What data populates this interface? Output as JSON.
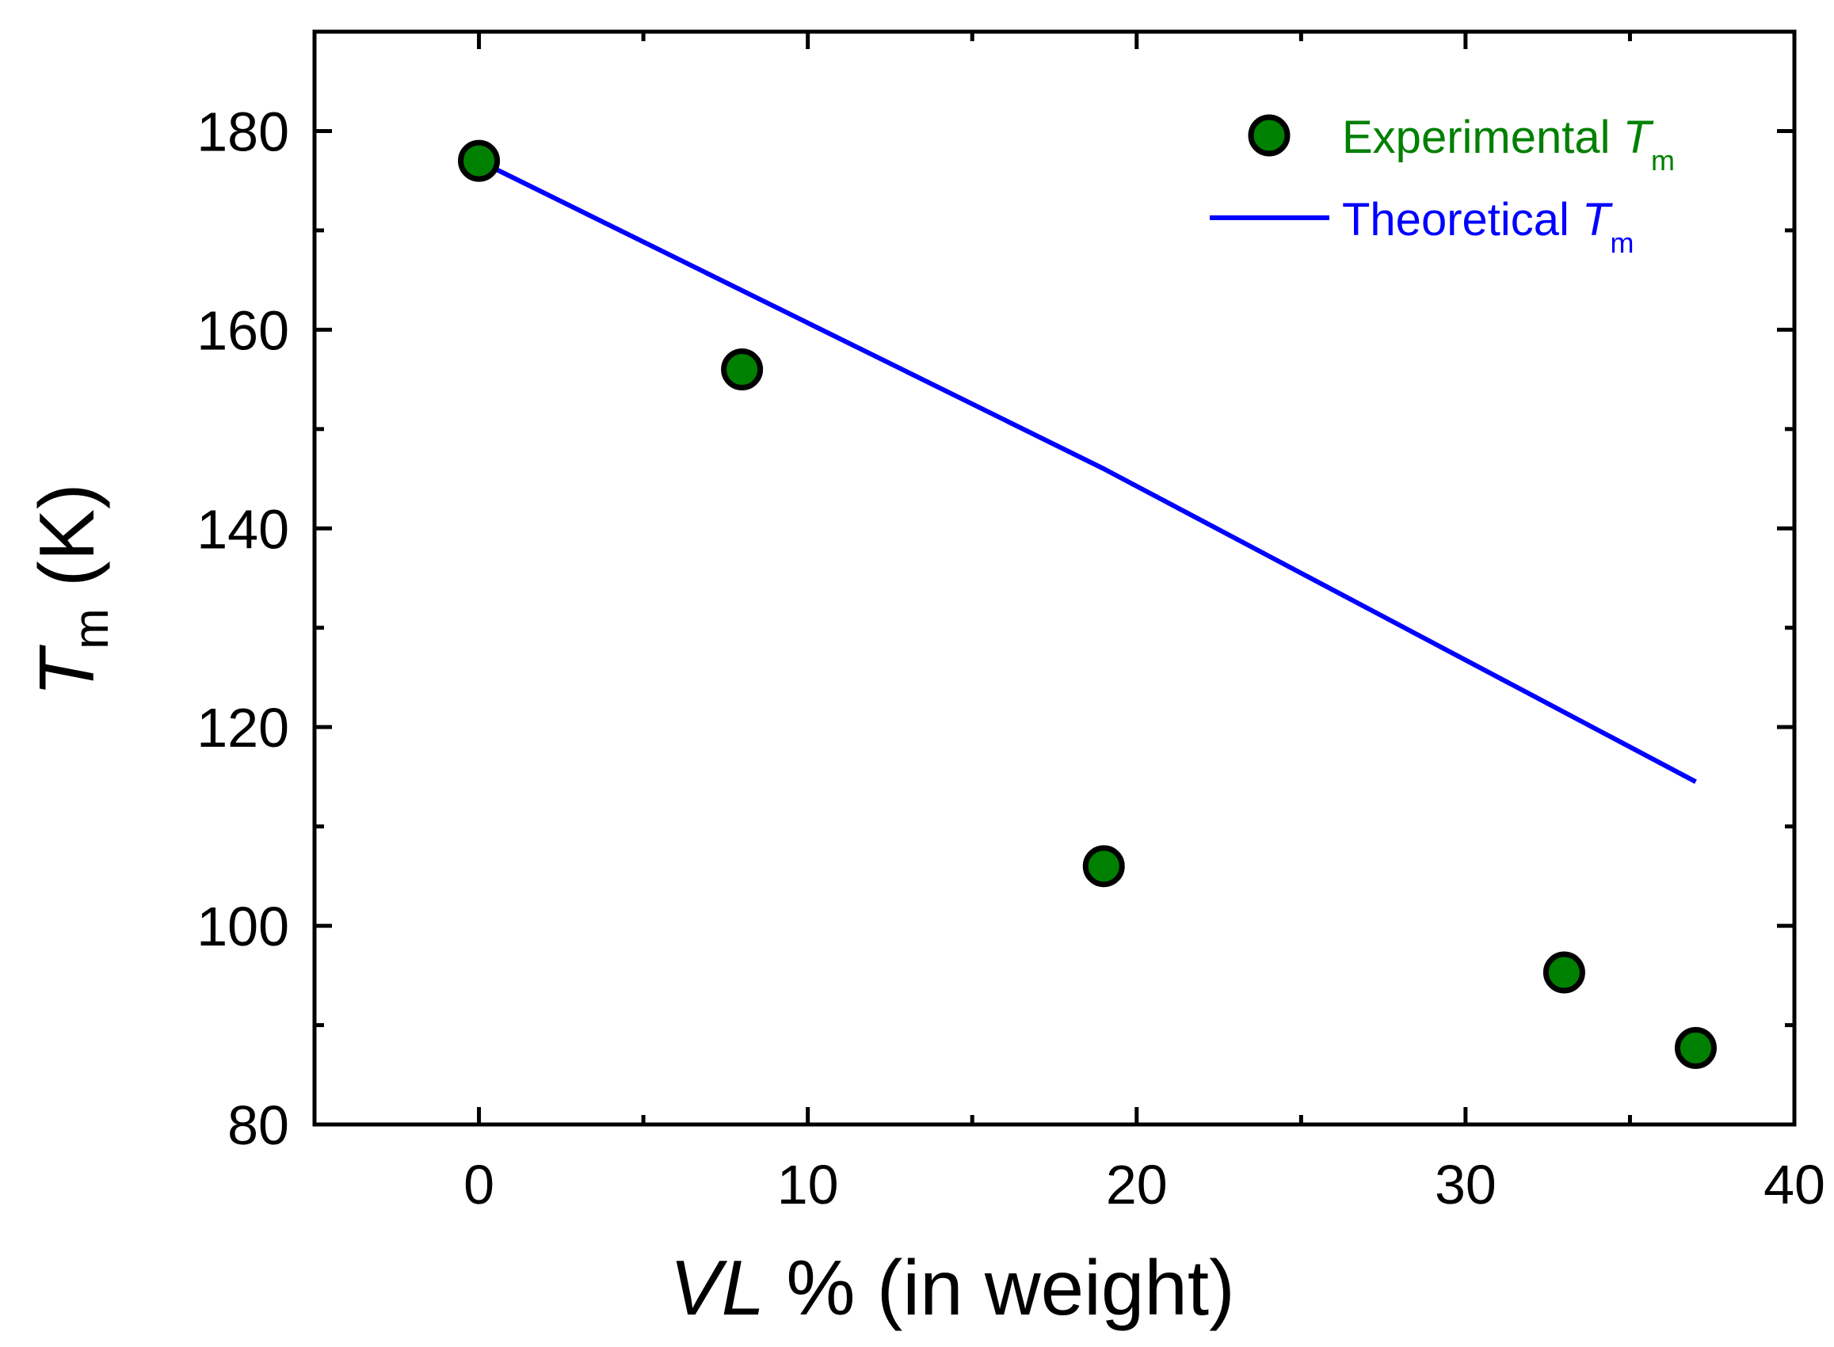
{
  "chart_data": {
    "type": "scatter",
    "title": "",
    "xlabel": {
      "italic": "VL",
      "rest": " % (in weight)"
    },
    "ylabel": {
      "symbol": "T",
      "subscript": "m",
      "unit": " (K)"
    },
    "xlim": [
      -5,
      40
    ],
    "ylim": [
      80,
      190
    ],
    "x_ticks": [
      0,
      10,
      20,
      30,
      40
    ],
    "y_ticks": [
      80,
      100,
      120,
      140,
      160,
      180
    ],
    "x_tick_labels": [
      "0",
      "10",
      "20",
      "30",
      "40"
    ],
    "y_tick_labels": [
      "80",
      "100",
      "120",
      "140",
      "160",
      "180"
    ],
    "grid": false,
    "legend_position": "top-right",
    "series": [
      {
        "name": "Experimental T_m",
        "label_text": "Experimental ",
        "label_symbol": "T",
        "label_sub": "m",
        "kind": "scatter",
        "color": "#008000",
        "edge_color": "#000000",
        "points": [
          {
            "x": 0,
            "y": 177
          },
          {
            "x": 8,
            "y": 156
          },
          {
            "x": 19,
            "y": 106
          },
          {
            "x": 33,
            "y": 95.3
          },
          {
            "x": 37,
            "y": 87.7
          }
        ]
      },
      {
        "name": "Theoretical T_m",
        "label_text": "Theoretical ",
        "label_symbol": "T",
        "label_sub": "m",
        "kind": "line",
        "color": "#0000ff",
        "points": [
          {
            "x": 0,
            "y": 177
          },
          {
            "x": 19,
            "y": 146
          },
          {
            "x": 37,
            "y": 114.5
          }
        ]
      }
    ]
  }
}
